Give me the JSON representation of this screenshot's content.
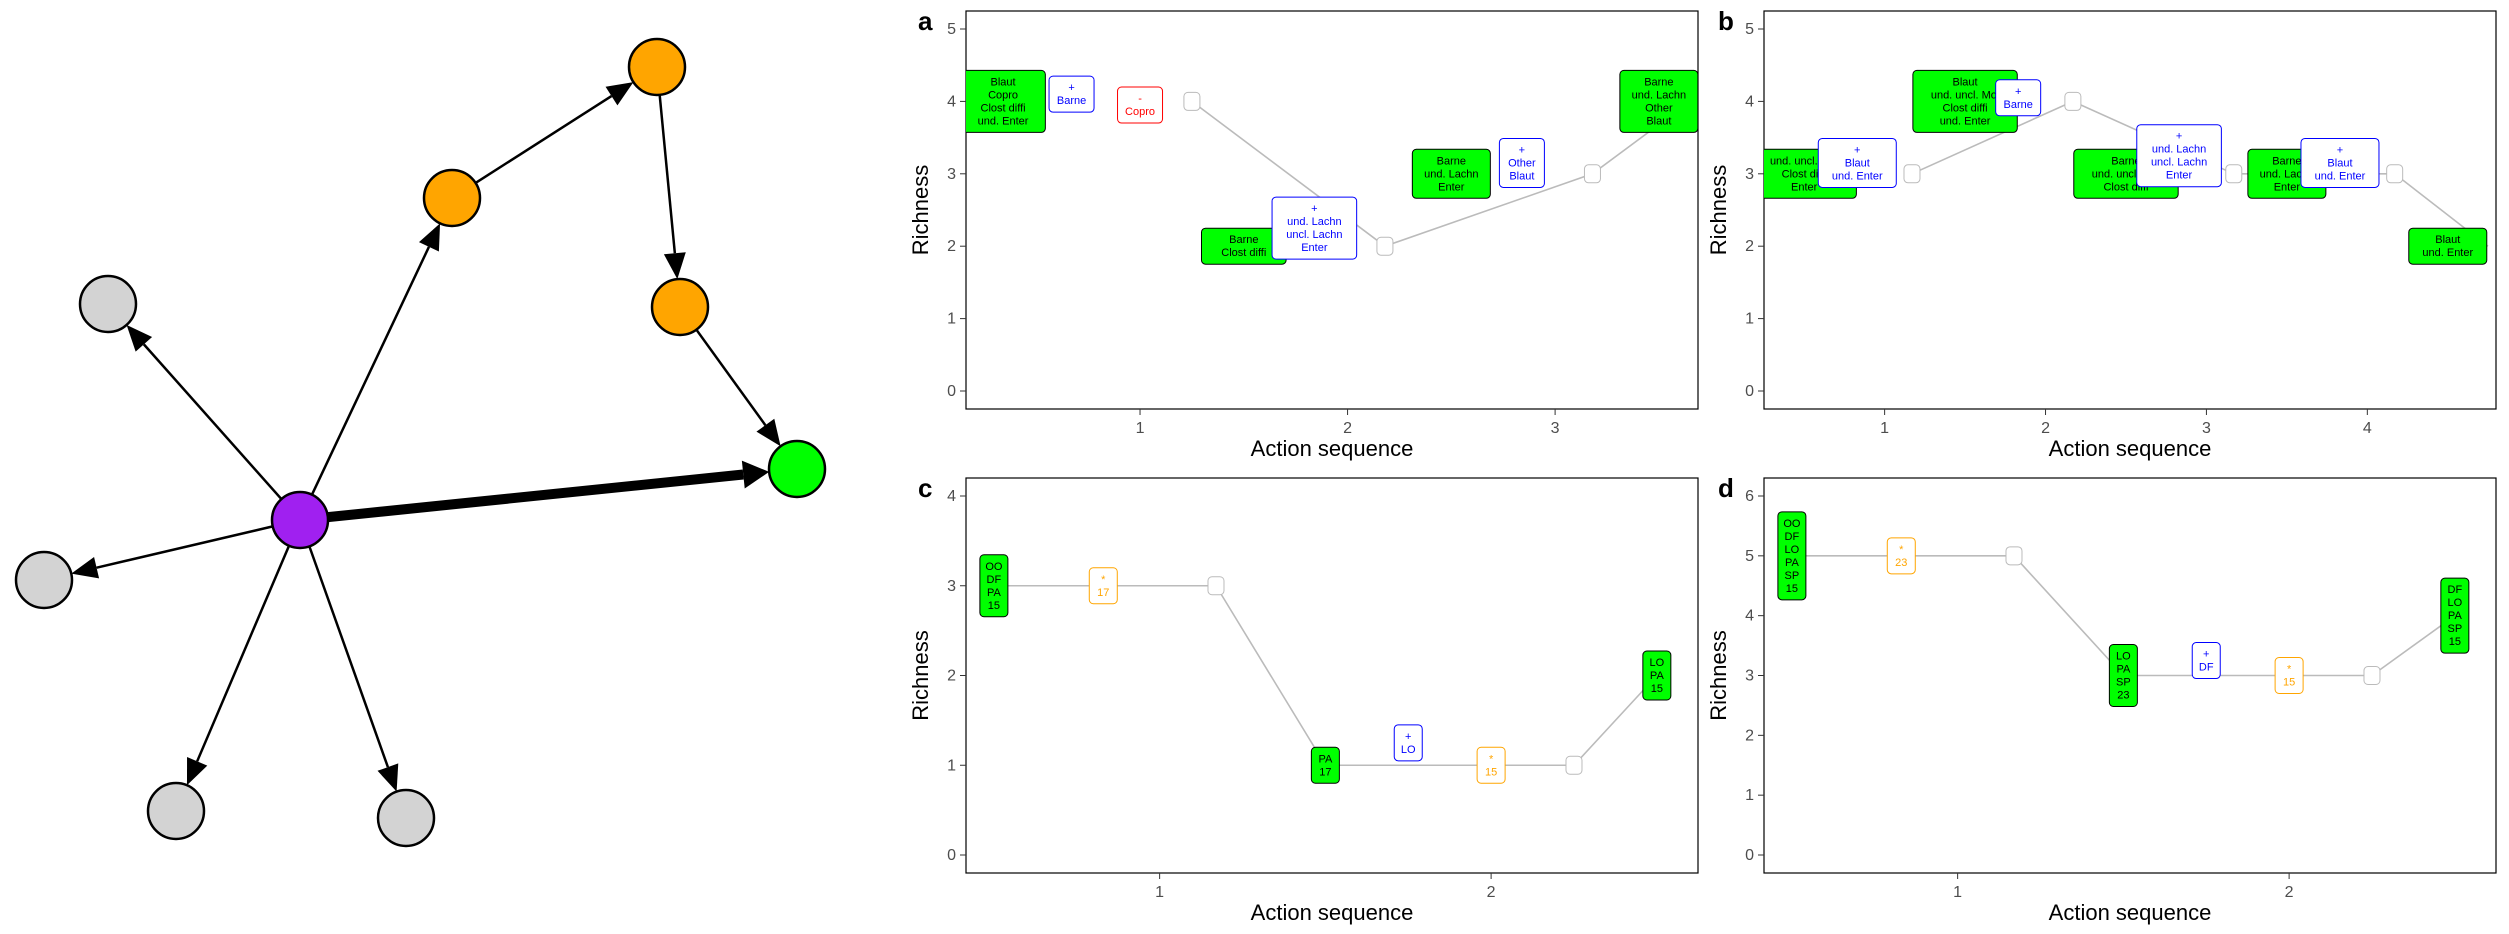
{
  "network": {
    "nodes": [
      {
        "id": "purple",
        "color": "#A020F0"
      },
      {
        "id": "green",
        "color": "#00FF00"
      },
      {
        "id": "orange1",
        "color": "#FFA500"
      },
      {
        "id": "orange2",
        "color": "#FFA500"
      },
      {
        "id": "orange3",
        "color": "#FFA500"
      },
      {
        "id": "grey1",
        "color": "#D3D3D3"
      },
      {
        "id": "grey2",
        "color": "#D3D3D3"
      },
      {
        "id": "grey3",
        "color": "#D3D3D3"
      },
      {
        "id": "grey4",
        "color": "#D3D3D3"
      }
    ],
    "edges": [
      {
        "from": "purple",
        "to": "green",
        "weight": 5
      },
      {
        "from": "purple",
        "to": "orange1",
        "weight": 1
      },
      {
        "from": "orange1",
        "to": "orange2",
        "weight": 1
      },
      {
        "from": "orange2",
        "to": "orange3",
        "weight": 1
      },
      {
        "from": "orange3",
        "to": "green",
        "weight": 1
      },
      {
        "from": "purple",
        "to": "grey1",
        "weight": 1
      },
      {
        "from": "purple",
        "to": "grey2",
        "weight": 1
      },
      {
        "from": "purple",
        "to": "grey3",
        "weight": 1
      },
      {
        "from": "purple",
        "to": "grey4",
        "weight": 1
      }
    ]
  },
  "colors": {
    "state": "#00FF00",
    "add": "#0000FF",
    "remove": "#FF0000",
    "orange": "#FFA500",
    "empty": "#BBBBBB",
    "line": "#BBBBBB"
  },
  "chart_data": [
    {
      "panel": "a",
      "type": "line",
      "xlabel": "Action sequence",
      "ylabel": "Richness",
      "ylim": [
        0,
        5
      ],
      "yticks": [
        "0",
        "1",
        "2",
        "3",
        "4",
        "5"
      ],
      "xlim": [
        0.2,
        3.65
      ],
      "xticks": [
        "1",
        "2",
        "3"
      ],
      "line": [
        [
          1.25,
          4
        ],
        [
          2.18,
          2
        ],
        [
          3.18,
          3
        ],
        [
          3.65,
          4
        ]
      ],
      "boxes": [
        {
          "x": 0.34,
          "y": 4,
          "kind": "state",
          "lines": [
            "Blaut",
            "Copro",
            "Clost diffi",
            "und. Enter"
          ]
        },
        {
          "x": 0.67,
          "y": 4.1,
          "kind": "add",
          "lines": [
            "+",
            "Barne"
          ]
        },
        {
          "x": 1.0,
          "y": 3.95,
          "kind": "remove",
          "lines": [
            "-",
            "Copro"
          ]
        },
        {
          "x": 1.25,
          "y": 4,
          "kind": "empty",
          "lines": []
        },
        {
          "x": 1.5,
          "y": 2,
          "kind": "state",
          "lines": [
            "Barne",
            "Clost diffi"
          ]
        },
        {
          "x": 1.84,
          "y": 2.25,
          "kind": "add",
          "lines": [
            "+",
            "und. Lachn",
            "uncl. Lachn",
            "Enter"
          ]
        },
        {
          "x": 2.18,
          "y": 2,
          "kind": "empty",
          "lines": []
        },
        {
          "x": 2.5,
          "y": 3,
          "kind": "state",
          "lines": [
            "Barne",
            "und. Lachn",
            "Enter"
          ]
        },
        {
          "x": 2.84,
          "y": 3.15,
          "kind": "add",
          "lines": [
            "+",
            "Other",
            "Blaut"
          ]
        },
        {
          "x": 3.18,
          "y": 3,
          "kind": "empty",
          "lines": []
        },
        {
          "x": 3.5,
          "y": 4,
          "kind": "state",
          "lines": [
            "Barne",
            "und. Lachn",
            "Other",
            "Blaut"
          ]
        }
      ]
    },
    {
      "panel": "b",
      "type": "line",
      "xlabel": "Action sequence",
      "ylabel": "Richness",
      "ylim": [
        0,
        5
      ],
      "yticks": [
        "0",
        "1",
        "2",
        "3",
        "4",
        "5"
      ],
      "xlim": [
        0.3,
        4.75
      ],
      "xticks": [
        "1",
        "2",
        "3",
        "4"
      ],
      "line": [
        [
          1.17,
          3
        ],
        [
          2.17,
          4
        ],
        [
          3.17,
          3
        ],
        [
          4.17,
          3
        ],
        [
          4.75,
          2
        ]
      ],
      "boxes": [
        {
          "x": 0.5,
          "y": 3,
          "kind": "state",
          "lines": [
            "und. uncl. Mol",
            "Clost diffi",
            "Enter"
          ]
        },
        {
          "x": 0.83,
          "y": 3.15,
          "kind": "add",
          "lines": [
            "+",
            "Blaut",
            "und. Enter"
          ]
        },
        {
          "x": 1.17,
          "y": 3,
          "kind": "empty",
          "lines": []
        },
        {
          "x": 1.5,
          "y": 4,
          "kind": "state",
          "lines": [
            "Blaut",
            "und. uncl. Mol",
            "Clost diffi",
            "und. Enter"
          ]
        },
        {
          "x": 1.83,
          "y": 4.05,
          "kind": "add",
          "lines": [
            "+",
            "Barne"
          ]
        },
        {
          "x": 2.17,
          "y": 4,
          "kind": "empty",
          "lines": []
        },
        {
          "x": 2.5,
          "y": 3,
          "kind": "state",
          "lines": [
            "Barne",
            "und. uncl. Mol",
            "Clost diffi"
          ]
        },
        {
          "x": 2.83,
          "y": 3.25,
          "kind": "add",
          "lines": [
            "+",
            "und. Lachn",
            "uncl. Lachn",
            "Enter"
          ]
        },
        {
          "x": 3.17,
          "y": 3,
          "kind": "empty",
          "lines": []
        },
        {
          "x": 3.5,
          "y": 3,
          "kind": "state",
          "lines": [
            "Barne",
            "und. Lachn",
            "Enter"
          ]
        },
        {
          "x": 3.83,
          "y": 3.15,
          "kind": "add",
          "lines": [
            "+",
            "Blaut",
            "und. Enter"
          ]
        },
        {
          "x": 4.17,
          "y": 3,
          "kind": "empty",
          "lines": []
        },
        {
          "x": 4.5,
          "y": 2,
          "kind": "state",
          "lines": [
            "Blaut",
            "und. Enter"
          ]
        }
      ]
    },
    {
      "panel": "c",
      "type": "line",
      "xlabel": "Action sequence",
      "ylabel": "Richness",
      "ylim": [
        0,
        4
      ],
      "yticks": [
        "0",
        "1",
        "2",
        "3",
        "4"
      ],
      "xlim": [
        0.44,
        2.6
      ],
      "xticks": [
        "1",
        "2"
      ],
      "line": [
        [
          0.5,
          3
        ],
        [
          1.17,
          3
        ],
        [
          1.5,
          1
        ],
        [
          2.25,
          1
        ],
        [
          2.5,
          2
        ]
      ],
      "boxes": [
        {
          "x": 0.5,
          "y": 3,
          "kind": "state",
          "lines": [
            "OO",
            "DF",
            "PA",
            "15"
          ]
        },
        {
          "x": 0.83,
          "y": 3,
          "kind": "orange",
          "lines": [
            "*",
            "17"
          ]
        },
        {
          "x": 1.17,
          "y": 3,
          "kind": "empty",
          "lines": []
        },
        {
          "x": 1.5,
          "y": 1,
          "kind": "state",
          "lines": [
            "PA",
            "17"
          ]
        },
        {
          "x": 1.75,
          "y": 1.25,
          "kind": "add",
          "lines": [
            "+",
            "LO"
          ]
        },
        {
          "x": 2.0,
          "y": 1,
          "kind": "orange",
          "lines": [
            "*",
            "15"
          ]
        },
        {
          "x": 2.25,
          "y": 1,
          "kind": "empty",
          "lines": []
        },
        {
          "x": 2.5,
          "y": 2,
          "kind": "state",
          "lines": [
            "LO",
            "PA",
            "15"
          ]
        }
      ]
    },
    {
      "panel": "d",
      "type": "line",
      "xlabel": "Action sequence",
      "ylabel": "Richness",
      "ylim": [
        0,
        6
      ],
      "yticks": [
        "0",
        "1",
        "2",
        "3",
        "4",
        "5",
        "6"
      ],
      "xlim": [
        0.44,
        2.6
      ],
      "xticks": [
        "1",
        "2"
      ],
      "line": [
        [
          0.5,
          5
        ],
        [
          1.17,
          5
        ],
        [
          1.5,
          3
        ],
        [
          2.25,
          3
        ],
        [
          2.5,
          4
        ]
      ],
      "boxes": [
        {
          "x": 0.5,
          "y": 5,
          "kind": "state",
          "lines": [
            "OO",
            "DF",
            "LO",
            "PA",
            "SP",
            "15"
          ]
        },
        {
          "x": 0.83,
          "y": 5,
          "kind": "orange",
          "lines": [
            "*",
            "23"
          ]
        },
        {
          "x": 1.17,
          "y": 5,
          "kind": "empty",
          "lines": []
        },
        {
          "x": 1.5,
          "y": 3,
          "kind": "state",
          "lines": [
            "LO",
            "PA",
            "SP",
            "23"
          ]
        },
        {
          "x": 1.75,
          "y": 3.25,
          "kind": "add",
          "lines": [
            "+",
            "DF"
          ]
        },
        {
          "x": 2.0,
          "y": 3,
          "kind": "orange",
          "lines": [
            "*",
            "15"
          ]
        },
        {
          "x": 2.25,
          "y": 3,
          "kind": "empty",
          "lines": []
        },
        {
          "x": 2.5,
          "y": 4,
          "kind": "state",
          "lines": [
            "DF",
            "LO",
            "PA",
            "SP",
            "15"
          ]
        }
      ]
    }
  ]
}
